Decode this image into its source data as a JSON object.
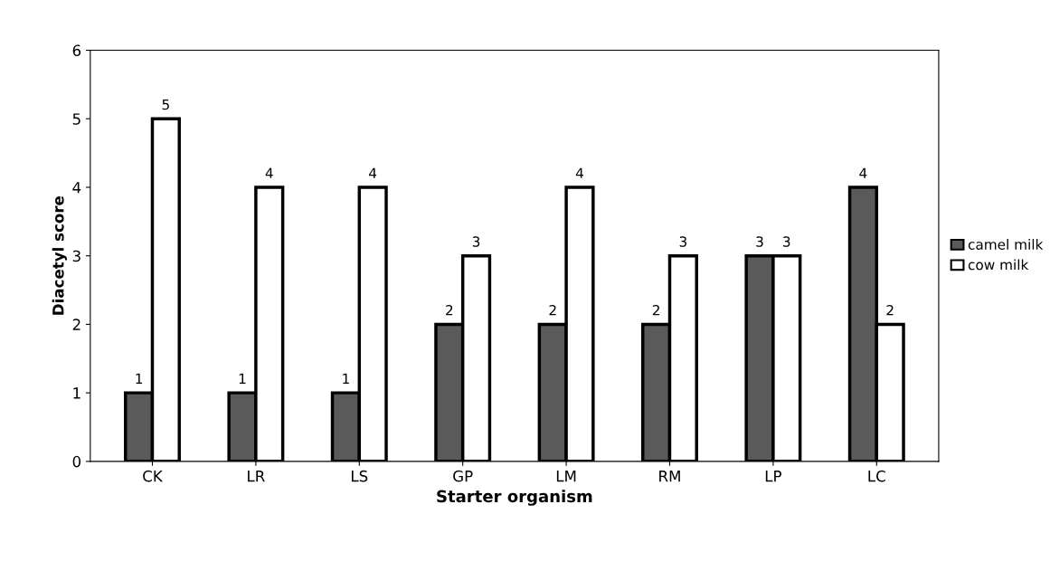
{
  "chart_data": {
    "type": "bar",
    "xlabel": "Starter organism",
    "ylabel": "Diacetyl score",
    "categories": [
      "CK",
      "LR",
      "LS",
      "GP",
      "LM",
      "RM",
      "LP",
      "LC"
    ],
    "series": [
      {
        "name": "camel milk",
        "color": "#5a5a5a",
        "values": [
          1,
          1,
          1,
          2,
          2,
          2,
          3,
          4
        ]
      },
      {
        "name": "cow milk",
        "color": "#ffffff",
        "values": [
          5,
          4,
          4,
          3,
          4,
          3,
          3,
          2
        ]
      }
    ],
    "ylim": [
      0,
      6
    ],
    "yticks": [
      0,
      1,
      2,
      3,
      4,
      5,
      6
    ],
    "data_labels": true,
    "grid": false,
    "legend": "right"
  }
}
